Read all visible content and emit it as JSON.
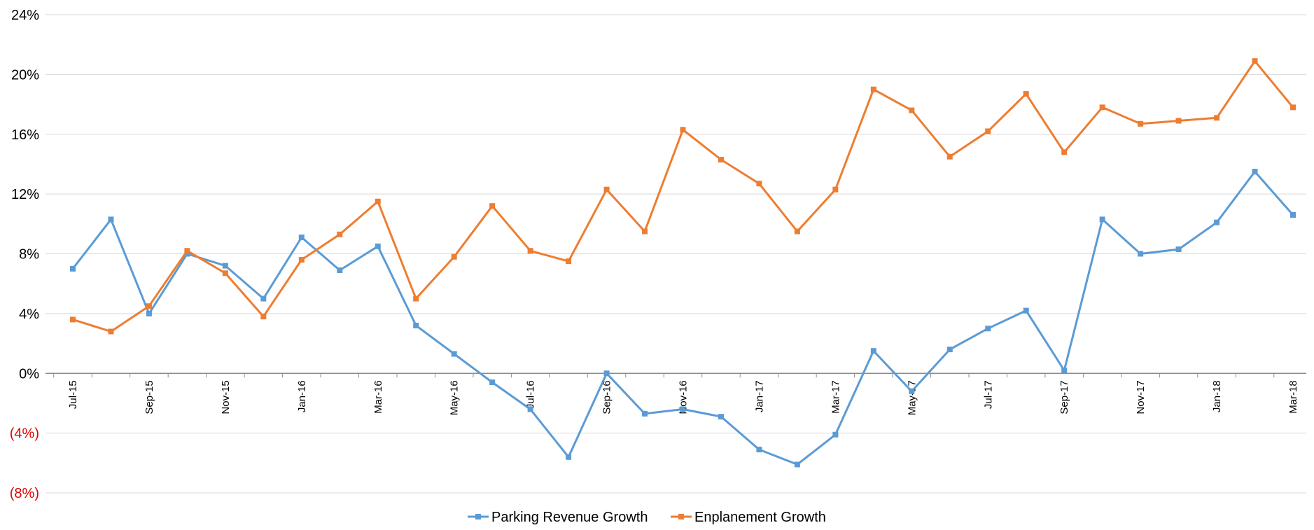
{
  "chart_data": {
    "type": "line",
    "categories": [
      "Jul-15",
      "Aug-15",
      "Sep-15",
      "Oct-15",
      "Nov-15",
      "Dec-15",
      "Jan-16",
      "Feb-16",
      "Mar-16",
      "Apr-16",
      "May-16",
      "Jun-16",
      "Jul-16",
      "Aug-16",
      "Sep-16",
      "Oct-16",
      "Nov-16",
      "Dec-16",
      "Jan-17",
      "Feb-17",
      "Mar-17",
      "Apr-17",
      "May-17",
      "Jun-17",
      "Jul-17",
      "Aug-17",
      "Sep-17",
      "Oct-17",
      "Nov-17",
      "Dec-17",
      "Jan-18",
      "Feb-18",
      "Mar-18"
    ],
    "x_tick_labels": [
      "Jul-15",
      "Sep-15",
      "Nov-15",
      "Jan-16",
      "Mar-16",
      "May-16",
      "Jul-16",
      "Sep-16",
      "Nov-16",
      "Jan-17",
      "Mar-17",
      "May-17",
      "Jul-17",
      "Sep-17",
      "Nov-17",
      "Jan-18",
      "Mar-18"
    ],
    "ylim": [
      -8,
      24
    ],
    "y_ticks": [
      {
        "value": 24,
        "label": "24%",
        "negative": false
      },
      {
        "value": 20,
        "label": "20%",
        "negative": false
      },
      {
        "value": 16,
        "label": "16%",
        "negative": false
      },
      {
        "value": 12,
        "label": "12%",
        "negative": false
      },
      {
        "value": 8,
        "label": "8%",
        "negative": false
      },
      {
        "value": 4,
        "label": "4%",
        "negative": false
      },
      {
        "value": 0,
        "label": "0%",
        "negative": false
      },
      {
        "value": -4,
        "label": "(4%)",
        "negative": true
      },
      {
        "value": -8,
        "label": "(8%)",
        "negative": true
      }
    ],
    "grid": true,
    "legend_position": "bottom-center",
    "series": [
      {
        "name": "Parking Revenue Growth",
        "color": "#5b9bd5",
        "values": [
          7.0,
          10.3,
          4.0,
          8.0,
          7.2,
          5.0,
          9.1,
          6.9,
          8.5,
          3.2,
          1.3,
          -0.6,
          -2.4,
          -5.6,
          0.0,
          -2.7,
          -2.4,
          -2.9,
          -5.1,
          -6.1,
          -4.1,
          1.5,
          -1.2,
          1.6,
          3.0,
          4.2,
          0.2,
          10.3,
          8.0,
          8.3,
          10.1,
          13.5,
          10.6
        ]
      },
      {
        "name": "Enplanement Growth",
        "color": "#ed7d31",
        "values": [
          3.6,
          2.8,
          4.5,
          8.2,
          6.7,
          3.8,
          7.6,
          9.3,
          11.5,
          5.0,
          7.8,
          11.2,
          8.2,
          7.5,
          12.3,
          9.5,
          16.3,
          14.3,
          12.7,
          9.5,
          12.3,
          19.0,
          17.6,
          14.5,
          16.2,
          18.7,
          14.8,
          17.8,
          16.7,
          16.9,
          17.1,
          20.9,
          17.8
        ]
      }
    ]
  }
}
